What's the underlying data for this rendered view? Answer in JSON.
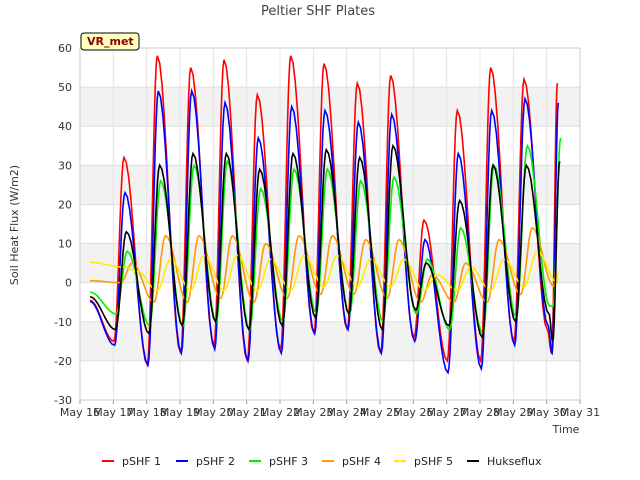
{
  "chart_data": {
    "type": "line",
    "title": "Peltier SHF Plates",
    "xlabel": "Time",
    "ylabel": "Soil Heat Flux (W/m2)",
    "badge": "VR_met",
    "xlim": [
      16,
      31
    ],
    "ylim": [
      -30,
      60
    ],
    "yticks": [
      -30,
      -20,
      -10,
      0,
      10,
      20,
      30,
      40,
      50,
      60
    ],
    "xticks": [
      {
        "v": 16,
        "label": "May 16"
      },
      {
        "v": 17,
        "label": "May 17"
      },
      {
        "v": 18,
        "label": "May 18"
      },
      {
        "v": 19,
        "label": "May 19"
      },
      {
        "v": 20,
        "label": "May 20"
      },
      {
        "v": 21,
        "label": "May 21"
      },
      {
        "v": 22,
        "label": "May 22"
      },
      {
        "v": 23,
        "label": "May 23"
      },
      {
        "v": 24,
        "label": "May 24"
      },
      {
        "v": 25,
        "label": "May 25"
      },
      {
        "v": 26,
        "label": "May 26"
      },
      {
        "v": 27,
        "label": "May 27"
      },
      {
        "v": 28,
        "label": "May 28"
      },
      {
        "v": 29,
        "label": "May 29"
      },
      {
        "v": 30,
        "label": "May 30"
      },
      {
        "v": 31,
        "label": "May 31"
      }
    ],
    "grid": true,
    "legend_position": "bottom",
    "day_starts": [
      16.3,
      17,
      18,
      19,
      20,
      21,
      22,
      23,
      24,
      25,
      26,
      27,
      28,
      29,
      30
    ],
    "series": [
      {
        "name": "pSHF 1",
        "color": "#ff0000",
        "peaks": [
          32,
          58,
          55,
          57,
          48,
          58,
          56,
          51,
          53,
          16,
          44,
          55,
          52,
          51
        ],
        "troughs": [
          -15,
          -21,
          -18,
          -16,
          -20,
          -17,
          -13,
          -12,
          -18,
          -14,
          -20,
          -20,
          -15,
          -12,
          -18
        ],
        "peak_hour": 0.55,
        "trough_hour": 0.25
      },
      {
        "name": "pSHF 2",
        "color": "#0000ff",
        "peaks": [
          23,
          49,
          49,
          46,
          37,
          45,
          44,
          41,
          43,
          11,
          33,
          44,
          47,
          46
        ],
        "troughs": [
          -16,
          -21,
          -18,
          -17,
          -20,
          -18,
          -13,
          -12,
          -18,
          -15,
          -23,
          -22,
          -16,
          -11,
          -18
        ],
        "peak_hour": 0.58,
        "trough_hour": 0.27
      },
      {
        "name": "pSHF 3",
        "color": "#00ee00",
        "peaks": [
          8,
          26,
          30,
          31,
          24,
          29,
          29,
          26,
          27,
          6,
          14,
          30,
          35,
          37
        ],
        "troughs": [
          -8,
          -11,
          -11,
          -10,
          -12,
          -10,
          -8,
          -8,
          -10,
          -8,
          -12,
          -13,
          -9,
          -6,
          -6
        ],
        "peak_hour": 0.65,
        "trough_hour": 0.32
      },
      {
        "name": "pSHF 4",
        "color": "#ff9900",
        "peaks": [
          5,
          12,
          12,
          12,
          10,
          12,
          12,
          11,
          11,
          2,
          5,
          11,
          14,
          16
        ],
        "troughs": [
          0,
          -5,
          -5,
          -4,
          -5,
          -4,
          -3,
          -3,
          -4,
          -5,
          -5,
          -5,
          -3,
          -1,
          3
        ],
        "peak_hour": 0.8,
        "trough_hour": 0.45
      },
      {
        "name": "pSHF 5",
        "color": "#ffee00",
        "peaks": [
          3,
          6,
          7,
          7,
          6,
          7,
          7,
          6,
          6,
          2,
          4,
          6,
          8,
          9
        ],
        "troughs": [
          4,
          -2,
          -2,
          -2,
          -2,
          -2,
          -1,
          -1,
          -1,
          -2,
          -2,
          -2,
          -1,
          0,
          3
        ],
        "peak_hour": 0.95,
        "trough_hour": 0.55
      },
      {
        "name": "Hukseflux",
        "color": "#000000",
        "peaks": [
          13,
          30,
          33,
          33,
          29,
          33,
          34,
          32,
          35,
          5,
          21,
          30,
          30,
          31
        ],
        "troughs": [
          -12,
          -13,
          -11,
          -10,
          -12,
          -11,
          -9,
          -8,
          -12,
          -7,
          -11,
          -14,
          -10,
          -8,
          -15
        ],
        "peak_hour": 0.62,
        "trough_hour": 0.3
      }
    ]
  }
}
